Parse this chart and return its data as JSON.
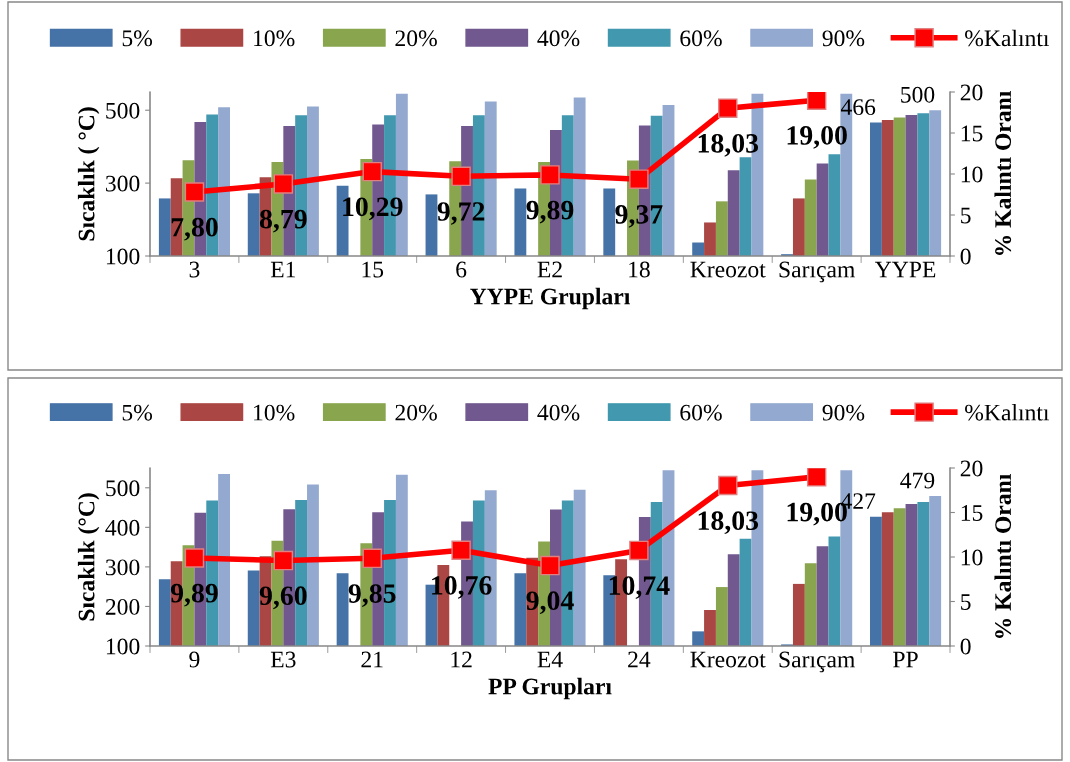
{
  "chart_data": [
    {
      "type": "bar",
      "xlabel": "YYPE Grupları",
      "ylabel": "Sıcaklık ( °C)",
      "y2label": "% Kalıntı Oranı",
      "categories": [
        "3",
        "E1",
        "15",
        "6",
        "E2",
        "18",
        "Kreozot",
        "Sarıçam",
        "YYPE"
      ],
      "ylim": [
        100,
        550
      ],
      "yticks": [
        100,
        300,
        500
      ],
      "y2lim": [
        0,
        20
      ],
      "y2ticks": [
        0,
        5,
        10,
        15,
        20
      ],
      "legend": "top",
      "grid": false,
      "series": [
        {
          "name": "5%",
          "color": "#4572a7",
          "values": [
            258,
            272,
            293,
            269,
            285,
            285,
            137,
            105,
            466
          ],
          "value_labels": [
            null,
            null,
            null,
            null,
            null,
            null,
            null,
            null,
            "466"
          ]
        },
        {
          "name": "10%",
          "color": "#aa4643",
          "values": [
            313,
            316,
            null,
            null,
            null,
            null,
            192,
            258,
            473
          ]
        },
        {
          "name": "20%",
          "color": "#89a54e",
          "values": [
            363,
            358,
            366,
            360,
            358,
            362,
            250,
            310,
            480
          ]
        },
        {
          "name": "40%",
          "color": "#71588f",
          "values": [
            468,
            457,
            461,
            457,
            446,
            458,
            335,
            354,
            487
          ]
        },
        {
          "name": "60%",
          "color": "#4198af",
          "values": [
            488,
            486,
            486,
            486,
            486,
            485,
            371,
            379,
            492
          ]
        },
        {
          "name": "90%",
          "color": "#93a9cf",
          "values": [
            508,
            510,
            545,
            524,
            535,
            514,
            545,
            545,
            500
          ],
          "value_labels": [
            null,
            null,
            null,
            null,
            null,
            null,
            null,
            null,
            "500"
          ]
        },
        {
          "name": "%Kalıntı",
          "type": "line",
          "axis": "y2",
          "color": "#ff0000",
          "marker": "square",
          "values": [
            7.8,
            8.79,
            10.29,
            9.72,
            9.89,
            9.37,
            18.03,
            19.0,
            null
          ],
          "value_labels": [
            "7,80",
            "8,79",
            "10,29",
            "9,72",
            "9,89",
            "9,37",
            "18,03",
            "19,00",
            null
          ]
        }
      ]
    },
    {
      "type": "bar",
      "xlabel": "PP Grupları",
      "ylabel": "Sıcaklık (°C)",
      "y2label": "% Kalıntı Oranı",
      "categories": [
        "9",
        "E3",
        "21",
        "12",
        "E4",
        "24",
        "Kreozot",
        "Sarıçam",
        "PP"
      ],
      "ylim": [
        100,
        550
      ],
      "yticks": [
        100,
        200,
        300,
        400,
        500
      ],
      "y2lim": [
        0,
        20
      ],
      "y2ticks": [
        0,
        5,
        10,
        15,
        20
      ],
      "legend": "top",
      "grid": false,
      "series": [
        {
          "name": "5%",
          "color": "#4572a7",
          "values": [
            269,
            291,
            284,
            255,
            284,
            279,
            137,
            104,
            427
          ],
          "value_labels": [
            null,
            null,
            null,
            null,
            null,
            null,
            null,
            null,
            "427"
          ]
        },
        {
          "name": "10%",
          "color": "#aa4643",
          "values": [
            314,
            327,
            null,
            305,
            323,
            319,
            191,
            257,
            438
          ]
        },
        {
          "name": "20%",
          "color": "#89a54e",
          "values": [
            355,
            366,
            360,
            null,
            364,
            null,
            249,
            309,
            448
          ]
        },
        {
          "name": "40%",
          "color": "#71588f",
          "values": [
            437,
            446,
            438,
            415,
            445,
            426,
            332,
            352,
            459
          ]
        },
        {
          "name": "60%",
          "color": "#4198af",
          "values": [
            468,
            469,
            469,
            468,
            468,
            464,
            371,
            377,
            464
          ]
        },
        {
          "name": "90%",
          "color": "#93a9cf",
          "values": [
            535,
            508,
            533,
            494,
            495,
            544,
            544,
            544,
            479
          ],
          "value_labels": [
            null,
            null,
            null,
            null,
            null,
            null,
            null,
            null,
            "479"
          ]
        },
        {
          "name": "%Kalıntı",
          "type": "line",
          "axis": "y2",
          "color": "#ff0000",
          "marker": "square",
          "values": [
            9.89,
            9.6,
            9.85,
            10.76,
            9.04,
            10.74,
            18.03,
            19.0,
            null
          ],
          "value_labels": [
            "9,89",
            "9,60",
            "9,85",
            "10,76",
            "9,04",
            "10,74",
            "18,03",
            "19,00",
            null
          ]
        }
      ]
    }
  ]
}
